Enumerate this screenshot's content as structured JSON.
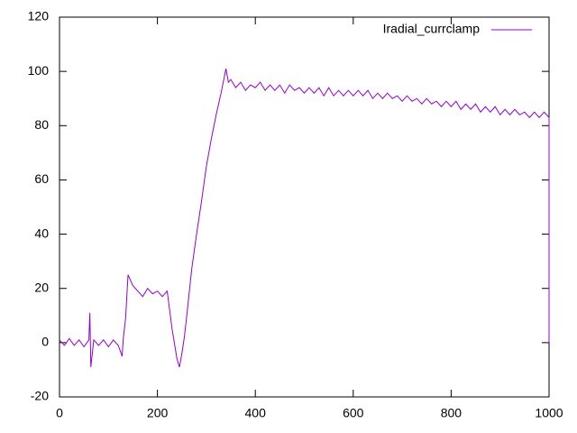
{
  "chart_data": {
    "type": "line",
    "xlim": [
      0,
      1000
    ],
    "ylim": [
      -20,
      120
    ],
    "xticks": [
      0,
      200,
      400,
      600,
      800,
      1000
    ],
    "yticks": [
      -20,
      0,
      20,
      40,
      60,
      80,
      100,
      120
    ],
    "legend": "top-right",
    "series": [
      {
        "name": "Iradial_currclamp",
        "color": "#9400d3",
        "x": [
          0,
          10,
          20,
          30,
          40,
          50,
          60,
          62,
          64,
          70,
          80,
          90,
          100,
          110,
          120,
          128,
          130,
          135,
          140,
          150,
          160,
          170,
          180,
          190,
          200,
          210,
          220,
          230,
          240,
          245,
          250,
          255,
          260,
          270,
          280,
          290,
          300,
          310,
          320,
          330,
          340,
          345,
          350,
          360,
          370,
          380,
          390,
          400,
          410,
          420,
          430,
          440,
          450,
          460,
          470,
          480,
          490,
          500,
          510,
          520,
          530,
          540,
          550,
          560,
          570,
          580,
          590,
          600,
          610,
          620,
          630,
          640,
          650,
          660,
          670,
          680,
          690,
          700,
          710,
          720,
          730,
          740,
          750,
          760,
          770,
          780,
          790,
          800,
          810,
          820,
          830,
          840,
          850,
          860,
          870,
          880,
          890,
          900,
          910,
          920,
          930,
          940,
          950,
          960,
          970,
          980,
          990,
          1000,
          1000
        ],
        "values": [
          1,
          -1,
          1.5,
          -1,
          1,
          -1.5,
          1,
          11,
          -9,
          1,
          -1,
          1,
          -1.5,
          1,
          -1,
          -5,
          1,
          9,
          25,
          21,
          19,
          17,
          20,
          18,
          19,
          17,
          19,
          5,
          -6,
          -9,
          -4,
          2,
          10,
          27,
          40,
          52,
          65,
          75,
          84,
          92,
          101,
          96,
          97,
          94,
          96,
          93,
          95,
          94,
          96,
          93,
          95,
          93,
          95,
          92,
          95,
          93,
          94,
          92,
          94,
          92,
          94,
          91,
          94,
          91,
          93,
          91,
          93,
          91,
          93,
          91,
          93,
          90,
          92,
          90,
          92,
          90,
          91,
          89,
          91,
          89,
          90,
          88,
          90,
          88,
          89,
          87,
          89,
          87,
          89,
          86,
          88,
          86,
          88,
          85,
          87,
          85,
          87,
          84,
          86,
          84,
          86,
          84,
          85,
          83,
          85,
          83,
          85,
          83,
          0
        ]
      }
    ]
  }
}
